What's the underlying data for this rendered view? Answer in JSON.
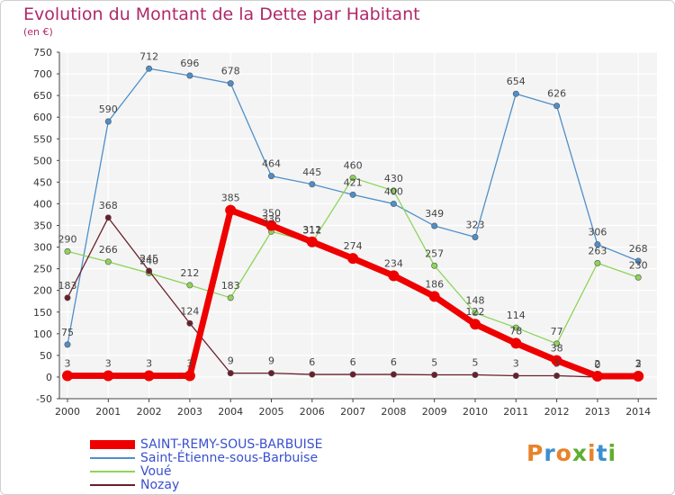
{
  "title": "Evolution du Montant de la Dette par Habitant",
  "subtitle": "(en €)",
  "logo": {
    "text": "Proxiti",
    "colors": [
      "#e8832a",
      "#3a8fd1",
      "#e8832a",
      "#5fae2e",
      "#e8832a",
      "#3a8fd1",
      "#5fae2e"
    ]
  },
  "chart_data": {
    "type": "line",
    "x": [
      "2000",
      "2001",
      "2002",
      "2003",
      "2004",
      "2005",
      "2006",
      "2007",
      "2008",
      "2009",
      "2010",
      "2011",
      "2012",
      "2013",
      "2014"
    ],
    "ylim": [
      -50,
      750
    ],
    "yticks": [
      -50,
      0,
      50,
      100,
      150,
      200,
      250,
      300,
      350,
      400,
      450,
      500,
      550,
      600,
      650,
      700,
      750
    ],
    "grid": true,
    "legend_position": "bottom-left",
    "series": [
      {
        "name": "Saint-Étienne-sous-Barbuise",
        "color": "#4f8fc9",
        "width": 1.3,
        "values": [
          75,
          590,
          712,
          696,
          678,
          464,
          445,
          421,
          400,
          349,
          323,
          654,
          626,
          306,
          268
        ]
      },
      {
        "name": "Voué",
        "color": "#8ed45a",
        "width": 1.3,
        "values": [
          290,
          266,
          240,
          212,
          183,
          336,
          311,
          460,
          430,
          257,
          148,
          114,
          77,
          263,
          230
        ]
      },
      {
        "name": "Nozay",
        "color": "#6b1f2a",
        "width": 1.3,
        "values": [
          183,
          368,
          245,
          124,
          9,
          9,
          6,
          6,
          6,
          5,
          5,
          3,
          3,
          0,
          3
        ]
      },
      {
        "name": "SAINT-REMY-SOUS-BARBUISE",
        "color": "#ee0000",
        "width": 7,
        "values": [
          3,
          3,
          3,
          3,
          385,
          350,
          312,
          274,
          234,
          186,
          122,
          78,
          38,
          2,
          2
        ]
      }
    ]
  }
}
